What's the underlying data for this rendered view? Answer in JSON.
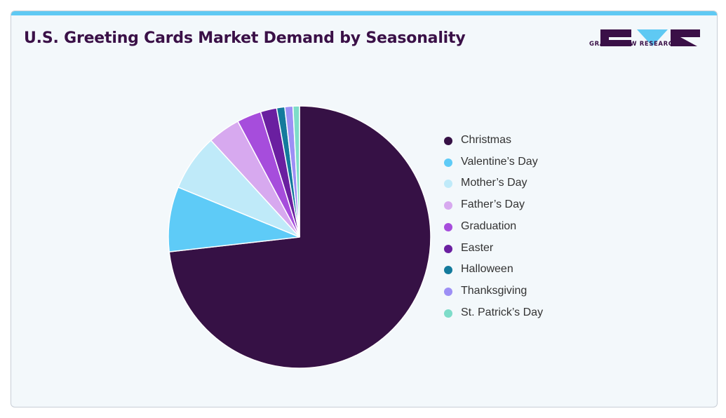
{
  "header": {
    "title": "U.S. Greeting Cards Market Demand by Seasonality",
    "logo_text": "GRAND VIEW RESEARCH"
  },
  "colors": {
    "accent": "#5fc9f3",
    "title": "#3a1047",
    "background": "#f3f8fb"
  },
  "chart_data": {
    "type": "pie",
    "title": "U.S. Greeting Cards Market Demand by Seasonality",
    "legend_position": "right",
    "slices": [
      {
        "label": "Christmas",
        "value": 73.2,
        "color": "#361145"
      },
      {
        "label": "Valentine’s Day",
        "value": 8.0,
        "color": "#5ecbf7"
      },
      {
        "label": "Mother’s Day",
        "value": 7.0,
        "color": "#bfeaf9"
      },
      {
        "label": "Father’s Day",
        "value": 4.0,
        "color": "#d7a9ef"
      },
      {
        "label": "Graduation",
        "value": 3.0,
        "color": "#a64ddc"
      },
      {
        "label": "Easter",
        "value": 2.0,
        "color": "#6a1fa0"
      },
      {
        "label": "Halloween",
        "value": 1.0,
        "color": "#137a9c"
      },
      {
        "label": "Thanksgiving",
        "value": 1.0,
        "color": "#9d8ff5"
      },
      {
        "label": "St. Patrick’s Day",
        "value": 0.8,
        "color": "#7ddcc9"
      }
    ]
  }
}
